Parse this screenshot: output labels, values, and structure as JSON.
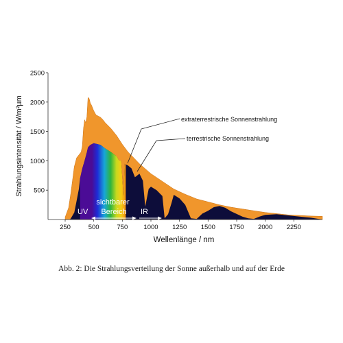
{
  "caption": "Abb. 2: Die Strahlungsverteilung der Sonne außerhalb und auf der Erde",
  "chart_data": {
    "type": "area",
    "title": "",
    "xlabel": "Wellenlänge  /  nm",
    "ylabel": "Strahlungsintensität  /  W/m²µm",
    "xlim": [
      100,
      2500
    ],
    "ylim": [
      0,
      2500
    ],
    "x_ticks": [
      "250",
      "500",
      "750",
      "1000",
      "1250",
      "1500",
      "1750",
      "2000",
      "2250"
    ],
    "y_ticks": [
      "500",
      "1000",
      "1500",
      "2000",
      "2500"
    ],
    "grid": false,
    "series": [
      {
        "name": "extraterrestrische Sonnenstrahlung",
        "color": "#f0962c",
        "x": [
          250,
          280,
          300,
          330,
          350,
          370,
          390,
          400,
          410,
          420,
          430,
          440,
          450,
          460,
          470,
          480,
          490,
          500,
          520,
          540,
          560,
          580,
          600,
          650,
          700,
          750,
          800,
          850,
          900,
          1000,
          1100,
          1200,
          1300,
          1400,
          1500,
          1600,
          1700,
          1800,
          1900,
          2000,
          2100,
          2200,
          2300,
          2400,
          2500
        ],
        "y": [
          40,
          200,
          450,
          900,
          1050,
          1100,
          1150,
          1250,
          1550,
          1700,
          1650,
          1750,
          2080,
          2060,
          1980,
          1950,
          1900,
          1850,
          1780,
          1760,
          1740,
          1700,
          1650,
          1550,
          1430,
          1280,
          1150,
          1050,
          950,
          780,
          650,
          520,
          430,
          350,
          300,
          250,
          210,
          180,
          150,
          120,
          100,
          80,
          70,
          60,
          55
        ]
      },
      {
        "name": "terrestrische Sonnenstrahlung",
        "color": "#0d0d3a",
        "x": [
          290,
          300,
          330,
          350,
          370,
          380,
          400,
          420,
          440,
          450,
          470,
          500,
          520,
          540,
          560,
          580,
          600,
          650,
          700,
          720,
          740,
          760,
          770,
          800,
          830,
          860,
          900,
          930,
          950,
          980,
          1000,
          1050,
          1100,
          1120,
          1150,
          1180,
          1200,
          1250,
          1300,
          1350,
          1400,
          1450,
          1500,
          1550,
          1600,
          1650,
          1700,
          1800,
          1850,
          1900,
          1950,
          2000,
          2100,
          2200,
          2300,
          2400,
          2500
        ],
        "y": [
          0,
          20,
          120,
          320,
          520,
          700,
          870,
          1000,
          1150,
          1230,
          1270,
          1300,
          1290,
          1280,
          1270,
          1240,
          1210,
          1150,
          1080,
          1010,
          1000,
          400,
          950,
          920,
          870,
          720,
          780,
          660,
          220,
          520,
          560,
          500,
          400,
          20,
          90,
          280,
          420,
          360,
          250,
          20,
          10,
          100,
          150,
          210,
          230,
          200,
          140,
          50,
          20,
          10,
          50,
          80,
          90,
          70,
          50,
          30,
          0
        ]
      }
    ],
    "annotations": [
      {
        "text": "extraterrestrische Sonnenstrahlung",
        "points_to_x": 1050
      },
      {
        "text": "terrestrische Sonnenstrahlung",
        "points_to_x": 830
      }
    ],
    "regions": [
      {
        "label": "UV",
        "x": [
          250,
          380
        ]
      },
      {
        "label": "sichtbarer Bereich",
        "x": [
          380,
          780
        ]
      },
      {
        "label": "IR",
        "x": [
          780,
          1000
        ]
      }
    ]
  }
}
